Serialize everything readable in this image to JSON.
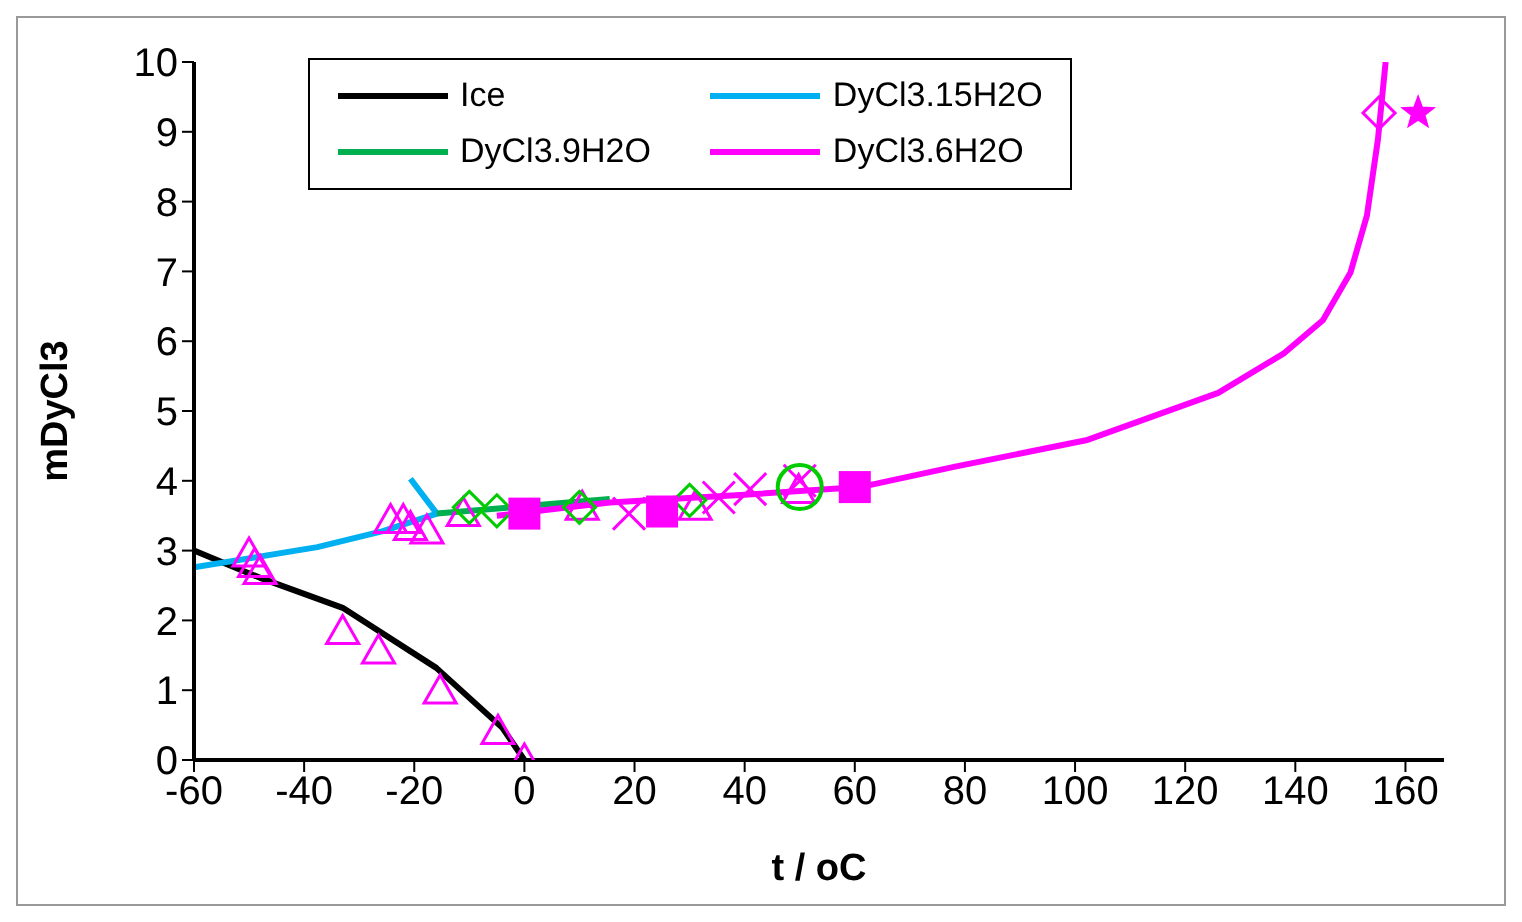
{
  "chart_data": {
    "type": "line",
    "xlabel": "t / oC",
    "ylabel": "mDyCl3",
    "xlim": [
      -60,
      167
    ],
    "ylim": [
      0,
      10
    ],
    "xticks": [
      -60,
      -40,
      -20,
      0,
      20,
      40,
      60,
      80,
      100,
      120,
      140,
      160
    ],
    "yticks": [
      0,
      1,
      2,
      3,
      4,
      5,
      6,
      7,
      8,
      9,
      10
    ],
    "grid": false,
    "legend": "top",
    "series": [
      {
        "name": "Ice",
        "color": "#000000",
        "x": [
          -60,
          -48,
          -33,
          -16,
          -4,
          0
        ],
        "values": [
          3.0,
          2.61,
          2.18,
          1.32,
          0.46,
          0
        ]
      },
      {
        "name": "DyCl3.15H2O",
        "color": "#00b0f0",
        "x": [
          -60,
          -37.6,
          -25.7,
          -15.9,
          -20.7
        ],
        "values": [
          2.76,
          3.05,
          3.28,
          3.53,
          4.03
        ]
      },
      {
        "name": "DyCl3.9H2O",
        "color": "#00b050",
        "x": [
          -15.9,
          15.5
        ],
        "values": [
          3.53,
          3.74
        ]
      },
      {
        "name": "DyCl3.6H2O",
        "color": "#ff00ff",
        "x": [
          -5,
          15.5,
          40,
          61,
          78,
          102,
          126,
          138,
          145,
          150,
          153,
          155,
          156.4
        ],
        "values": [
          3.5,
          3.69,
          3.8,
          3.91,
          4.2,
          4.58,
          5.26,
          5.83,
          6.3,
          6.98,
          7.8,
          8.89,
          10
        ]
      },
      {
        "type": "scatter",
        "color": "#ff00ff",
        "marker": "triangle",
        "x": [
          -50,
          -49,
          -48,
          -33,
          -26.5,
          -15.3,
          -4.8,
          0,
          -24.3,
          -22,
          -20.7,
          -17.7,
          -11.1,
          10.5,
          31,
          49.8
        ],
        "values": [
          2.95,
          2.8,
          2.7,
          1.84,
          1.56,
          0.99,
          0.41,
          0,
          3.43,
          3.43,
          3.33,
          3.28,
          3.53,
          3.62,
          3.62,
          3.86
        ]
      },
      {
        "type": "scatter",
        "color": "#00cc00",
        "marker": "diamond",
        "x": [
          -10,
          -5,
          10,
          30
        ],
        "values": [
          3.62,
          3.57,
          3.62,
          3.72
        ]
      },
      {
        "type": "scatter",
        "color": "#ff00ff",
        "marker": "square",
        "x": [
          0,
          25,
          60
        ],
        "values": [
          3.53,
          3.56,
          3.91
        ]
      },
      {
        "type": "scatter",
        "color": "#ff00ff",
        "marker": "cross",
        "x": [
          19,
          35.3,
          41,
          50
        ],
        "values": [
          3.53,
          3.76,
          3.88,
          4.0
        ]
      },
      {
        "type": "scatter",
        "color": "#00cc00",
        "marker": "circle",
        "x": [
          50
        ],
        "values": [
          3.91
        ]
      },
      {
        "type": "scatter",
        "color": "#ff00ff",
        "marker": "diamond",
        "x": [
          155.2
        ],
        "values": [
          9.27
        ]
      },
      {
        "type": "scatter",
        "color": "#ff00ff",
        "marker": "star",
        "x": [
          162.3
        ],
        "values": [
          9.27
        ]
      }
    ]
  }
}
